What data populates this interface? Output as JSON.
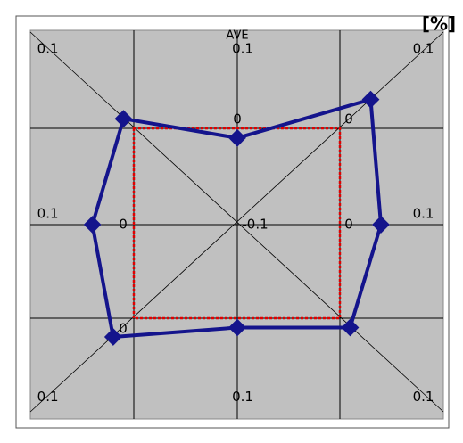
{
  "chart_data": {
    "type": "radar",
    "title": "AVE",
    "unit": "[%]",
    "series": [
      {
        "color": "#14148c",
        "values": [
          0.01,
          -0.01,
          0.03,
          0.04,
          0.01,
          0.01,
          0.02,
          0.04
        ]
      }
    ],
    "ylim": [
      -0.1,
      0.1
    ],
    "yticks": [
      -0.1,
      0,
      0.1
    ],
    "zero_color": "#e00000",
    "grid": true
  }
}
